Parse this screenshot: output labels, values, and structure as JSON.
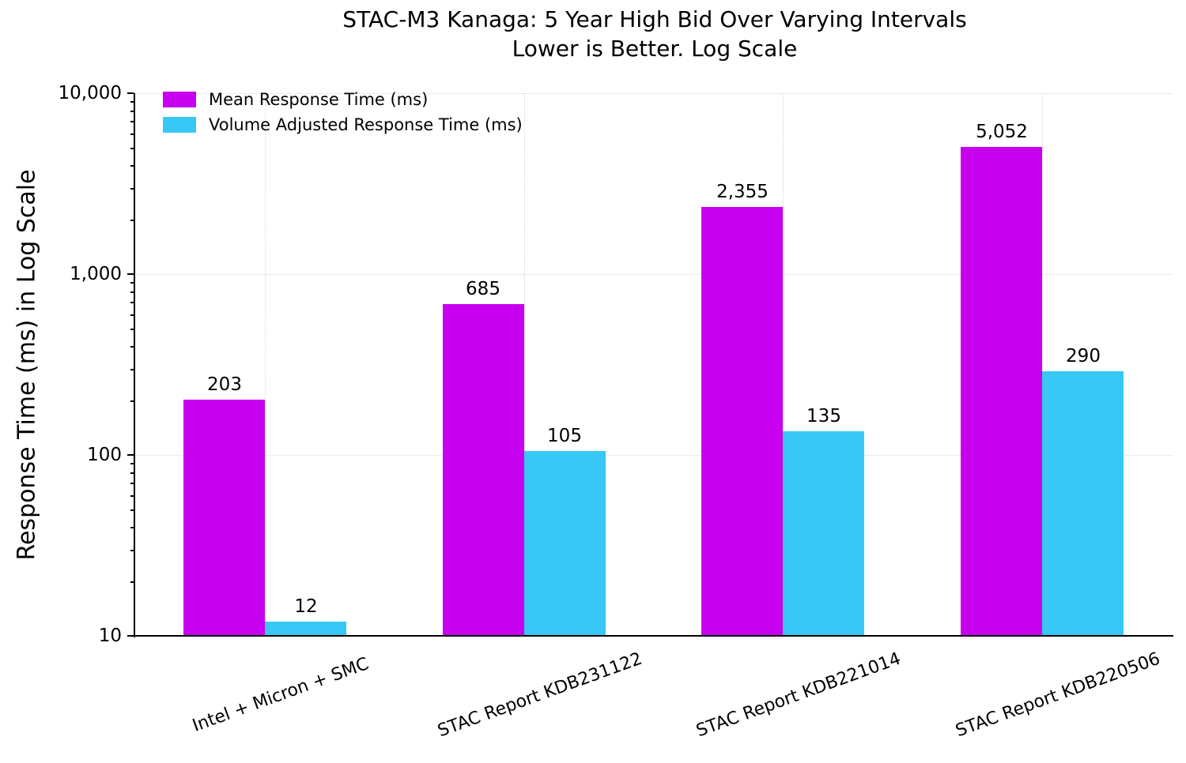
{
  "title": {
    "line1": "STAC-M3 Kanaga: 5 Year High Bid Over Varying Intervals",
    "line2": "Lower is Better. Log Scale"
  },
  "y_axis_label": "Response Time (ms) in Log Scale",
  "chart_data": {
    "type": "bar",
    "title": "STAC-M3 Kanaga: 5 Year High Bid Over Varying Intervals",
    "subtitle": "Lower is Better. Log Scale",
    "ylabel": "Response Time (ms) in Log Scale",
    "xlabel": "",
    "y_scale": "log",
    "ylim": [
      10,
      10000
    ],
    "ytick_values": [
      10,
      100,
      1000,
      10000
    ],
    "ytick_labels": [
      "10",
      "100",
      "1,000",
      "10,000"
    ],
    "grid": "dotted",
    "legend_position": "upper-left",
    "categories": [
      "Intel + Micron + SMC",
      "STAC Report KDB231122",
      "STAC Report KDB221014",
      "STAC Report KDB220506"
    ],
    "series": [
      {
        "name": "Mean Response Time (ms)",
        "color": "#c800f0",
        "values": [
          203,
          685,
          2355,
          5052
        ],
        "value_labels": [
          "203",
          "685",
          "2,355",
          "5,052"
        ]
      },
      {
        "name": "Volume Adjusted Response Time (ms)",
        "color": "#38c8f5",
        "values": [
          12,
          105,
          135,
          290
        ],
        "value_labels": [
          "12",
          "105",
          "135",
          "290"
        ]
      }
    ]
  }
}
